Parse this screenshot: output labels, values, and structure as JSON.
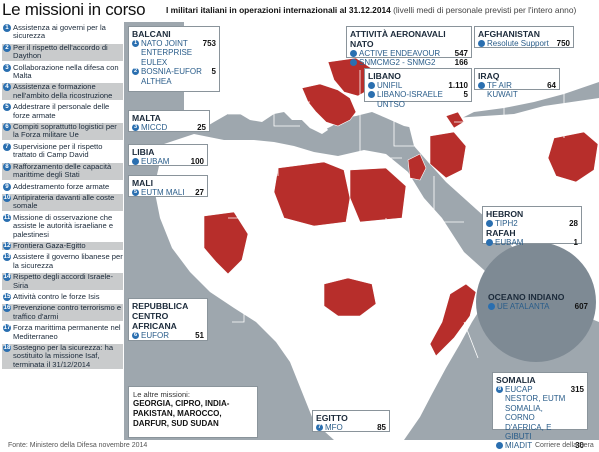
{
  "header": {
    "title": "Le missioni in corso",
    "subtitle_bold": "I militari italiani in operazioni internazionali al 31.12.2014",
    "subtitle_note": "(livelli medi di personale previsti per l'intero anno)"
  },
  "legend": [
    {
      "num": "1",
      "text": "Assistenza ai governi per la sicurezza"
    },
    {
      "num": "2",
      "text": "Per il rispetto dell'accordo di Daython"
    },
    {
      "num": "3",
      "text": "Collaborazione nella difesa con Malta"
    },
    {
      "num": "4",
      "text": "Assistenza e formazione nell'ambito della ricostruzione"
    },
    {
      "num": "5",
      "text": "Addestrare il personale delle forze armate"
    },
    {
      "num": "6",
      "text": "Compiti soprattutto logistici per la Forza militare Ue"
    },
    {
      "num": "7",
      "text": "Supervisione per il rispetto trattato di Camp David"
    },
    {
      "num": "8",
      "text": "Rafforzamento delle capacità marittime degli Stati"
    },
    {
      "num": "9",
      "text": "Addestramento forze armate"
    },
    {
      "num": "10",
      "text": "Antipirateria davanti alle coste somale"
    },
    {
      "num": "11",
      "text": "Missione di osservazione che assiste le autorità israeliane e palestinesi"
    },
    {
      "num": "12",
      "text": "Frontiera Gaza-Egitto"
    },
    {
      "num": "13",
      "text": "Assistere il governo libanese per la sicurezza"
    },
    {
      "num": "14",
      "text": "Rispetto degli accordi Israele-Siria"
    },
    {
      "num": "15",
      "text": "Attività contro le forze Isis"
    },
    {
      "num": "16",
      "text": "Prevenzione contro terrorismo e traffico d'armi"
    },
    {
      "num": "17",
      "text": "Forza marittima permanente nel Mediterraneo"
    },
    {
      "num": "18",
      "text": "Sostegno per la sicurezza: ha sostituito la missione Isaf, terminata il 31/12/2014"
    }
  ],
  "boxes": {
    "balcani": {
      "title": "BALCANI",
      "rows": [
        {
          "num": "1",
          "label": "NATO JOINT ENTERPRISE EULEX",
          "value": "753"
        },
        {
          "num": "2",
          "label": "BOSNIA-EUFOR ALTHEA",
          "value": "5"
        }
      ]
    },
    "malta": {
      "title": "MALTA",
      "rows": [
        {
          "num": "3",
          "label": "MICCD",
          "value": "25"
        }
      ]
    },
    "libia": {
      "title": "LIBIA",
      "rows": [
        {
          "num": "",
          "label": "EUBAM",
          "value": "100"
        }
      ]
    },
    "mali": {
      "title": "MALI",
      "rows": [
        {
          "num": "5",
          "label": "EUTM MALI",
          "value": "27"
        }
      ]
    },
    "rca": {
      "title": "REPUBBLICA CENTRO AFRICANA",
      "rows": [
        {
          "num": "6",
          "label": "EUFOR",
          "value": "51"
        }
      ]
    },
    "nato_air": {
      "title": "ATTIVITÀ AERONAVALI NATO",
      "rows": [
        {
          "num": "",
          "label": "ACTIVE ENDEAVOUR",
          "value": "547"
        },
        {
          "num": "",
          "label": "SNMCMG2 - SNMG2",
          "value": "166"
        }
      ]
    },
    "afghanistan": {
      "title": "AFGHANISTAN",
      "rows": [
        {
          "num": "",
          "label": "Resolute Support",
          "value": "750"
        }
      ]
    },
    "libano": {
      "title": "LIBANO",
      "rows": [
        {
          "num": "",
          "label": "UNIFIL",
          "value": "1.110"
        },
        {
          "num": "",
          "label": "LIBANO-ISRAELE UNTSO",
          "value": "5"
        }
      ]
    },
    "iraq": {
      "title": "IRAQ",
      "rows": [
        {
          "num": "",
          "label": "TF AIR KUWAIT",
          "value": "64"
        }
      ]
    },
    "hebron_rafah": {
      "title": "HEBRON",
      "rows": [
        {
          "num": "",
          "label": "TIPH2",
          "value": "28"
        }
      ],
      "title2": "RAFAH",
      "rows2": [
        {
          "num": "",
          "label": "EUBAM",
          "value": "1"
        }
      ]
    },
    "egitto": {
      "title": "EGITTO",
      "rows": [
        {
          "num": "7",
          "label": "MFO",
          "value": "85"
        }
      ]
    },
    "somalia": {
      "title": "SOMALIA",
      "rows": [
        {
          "num": "8",
          "label": "EUCAP NESTOR, EUTM SOMALIA, CORNO D'AFRICA, E GIBUTI",
          "value": "315"
        },
        {
          "num": "",
          "label": "MIADIT",
          "value": "30"
        }
      ]
    }
  },
  "ocean": {
    "title": "OCEANO INDIANO",
    "num": "",
    "label": "UE ATALANTA",
    "value": "607"
  },
  "others": {
    "title": "Le altre missioni:",
    "list": "GEORGIA, CIPRO, INDIA-PAKISTAN, MAROCCO, DARFUR, SUD SUDAN"
  },
  "footer": {
    "source": "Fonte: Ministero della Difesa novembre 2014",
    "credit": "Corriere della Sera"
  },
  "colors": {
    "mission_country": "#b72e2b",
    "land": "#ffffff",
    "sea": "#9ea7ae",
    "accent": "#2a6fb0"
  }
}
